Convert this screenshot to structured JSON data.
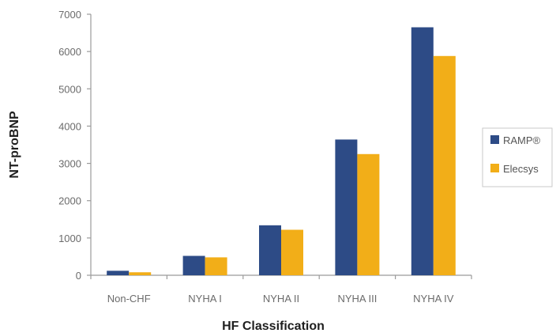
{
  "chart_data": {
    "type": "bar",
    "categories": [
      "Non-CHF",
      "NYHA I",
      "NYHA II",
      "NYHA III",
      "NYHA IV"
    ],
    "series": [
      {
        "name": "RAMP®",
        "values": [
          120,
          520,
          1340,
          3640,
          6650
        ],
        "color": "#2d4b86"
      },
      {
        "name": "Elecsys",
        "values": [
          80,
          480,
          1220,
          3250,
          5880
        ],
        "color": "#f2ae18"
      }
    ],
    "xlabel": "HF Classification",
    "ylabel": "NT-proBNP",
    "ylim": [
      0,
      7000
    ],
    "yticks": [
      0,
      1000,
      2000,
      3000,
      4000,
      5000,
      6000,
      7000
    ],
    "grid": false,
    "legend": "right"
  }
}
